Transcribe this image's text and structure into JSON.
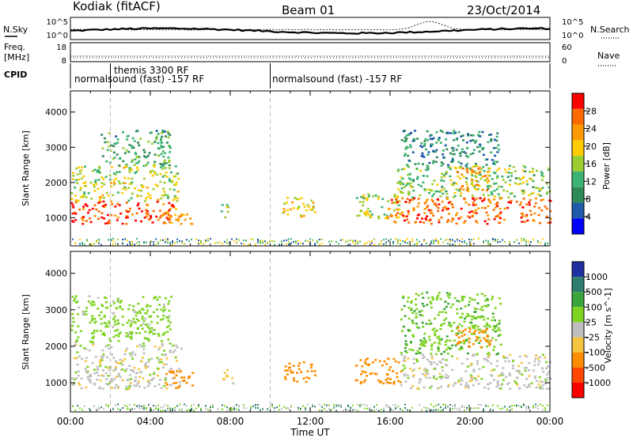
{
  "header": {
    "station": "Kodiak (fitACF)",
    "beam": "Beam 01",
    "date": "23/Oct/2014"
  },
  "sky_panel": {
    "left_label": "N.Sky",
    "tick_top": "10^5",
    "tick_bottom": "10^0",
    "right_label": "N.Search",
    "right_tick_top": "10^5",
    "right_tick_bottom": "10^0"
  },
  "freq_panel": {
    "left_label_line1": "Freq.",
    "left_label_line2": "[MHz]",
    "left_ticks": [
      "18",
      "8"
    ],
    "right_label": "Nave",
    "right_ticks": [
      "60",
      "0"
    ]
  },
  "cpid_panel": {
    "label": "CPID",
    "entries": [
      {
        "text": "normalsound (fast) -157 RF",
        "start_hour": 0.0
      },
      {
        "text": "themis 3300 RF",
        "start_hour": 2.0
      },
      {
        "text": "normalsound (fast) -157 RF",
        "start_hour": 10.0
      }
    ]
  },
  "power_panel": {
    "ylabel": "Slant Range [km]",
    "colorbar_label": "Power [dB]",
    "colorbar_ticks": [
      "28",
      "24",
      "20",
      "16",
      "12",
      "8",
      "4"
    ],
    "colors": [
      "#ff0000",
      "#ff6a00",
      "#ff9900",
      "#ffcc00",
      "#9acd32",
      "#3cb371",
      "#2e8b57",
      "#1e5aa8",
      "#0000ff"
    ]
  },
  "velocity_panel": {
    "ylabel": "Slant Range [km]",
    "colorbar_label": "Velocity [m s^-1]",
    "colorbar_ticks": [
      "1000",
      "500",
      "100",
      "25",
      "-25",
      "-100",
      "-500",
      "-1000"
    ],
    "colors": [
      "#2030a0",
      "#2e7d6e",
      "#3aa53a",
      "#7ed321",
      "#bfbfbf",
      "#f5c542",
      "#ff8c00",
      "#ff4500",
      "#ff0000"
    ]
  },
  "chart_data": {
    "type": "heatmap",
    "x": {
      "label": "Time UT",
      "ticks": [
        "00:00",
        "04:00",
        "08:00",
        "12:00",
        "16:00",
        "20:00",
        "00:00"
      ],
      "range_hours": [
        0,
        24
      ]
    },
    "y": {
      "label": "Slant Range [km]",
      "ticks": [
        "1000",
        "2000",
        "3000",
        "4000"
      ],
      "range_km": [
        200,
        4600
      ]
    },
    "power_blobs": [
      {
        "t0": 0.0,
        "t1": 5.2,
        "r0": 850,
        "r1": 1500,
        "power": 28
      },
      {
        "t0": 0.0,
        "t1": 5.4,
        "r0": 1500,
        "r1": 2500,
        "power": 16
      },
      {
        "t0": 1.5,
        "t1": 5.0,
        "r0": 2500,
        "r1": 3500,
        "power": 10
      },
      {
        "t0": 4.6,
        "t1": 6.1,
        "r0": 850,
        "r1": 1300,
        "power": 22
      },
      {
        "t0": 7.5,
        "t1": 8.0,
        "r0": 1000,
        "r1": 1400,
        "power": 14
      },
      {
        "t0": 10.5,
        "t1": 12.2,
        "r0": 1050,
        "r1": 1600,
        "power": 18
      },
      {
        "t0": 14.2,
        "t1": 16.5,
        "r0": 1000,
        "r1": 1700,
        "power": 16
      },
      {
        "t0": 15.8,
        "t1": 24.0,
        "r0": 850,
        "r1": 1600,
        "power": 26
      },
      {
        "t0": 16.3,
        "t1": 24.0,
        "r0": 1600,
        "r1": 2500,
        "power": 14
      },
      {
        "t0": 16.5,
        "t1": 21.5,
        "r0": 2500,
        "r1": 3500,
        "power": 8
      },
      {
        "t0": 19.2,
        "t1": 21.0,
        "r0": 1800,
        "r1": 2500,
        "power": 22
      }
    ],
    "velocity_blobs": [
      {
        "t0": 0.0,
        "t1": 5.5,
        "r0": 850,
        "r1": 2100,
        "velocity": 0
      },
      {
        "t0": 0.0,
        "t1": 5.0,
        "r0": 2100,
        "r1": 3400,
        "velocity": 60
      },
      {
        "t0": 4.6,
        "t1": 6.1,
        "r0": 850,
        "r1": 1350,
        "velocity": -300
      },
      {
        "t0": 7.5,
        "t1": 8.1,
        "r0": 1000,
        "r1": 1400,
        "velocity": -60
      },
      {
        "t0": 10.5,
        "t1": 12.2,
        "r0": 1050,
        "r1": 1600,
        "velocity": -400
      },
      {
        "t0": 14.2,
        "t1": 16.5,
        "r0": 1000,
        "r1": 1700,
        "velocity": -150
      },
      {
        "t0": 16.5,
        "t1": 24.0,
        "r0": 850,
        "r1": 1800,
        "velocity": 0
      },
      {
        "t0": 16.5,
        "t1": 21.5,
        "r0": 1800,
        "r1": 3500,
        "velocity": 80
      },
      {
        "t0": 19.2,
        "t1": 21.0,
        "r0": 2000,
        "r1": 2600,
        "velocity": -350
      }
    ]
  }
}
